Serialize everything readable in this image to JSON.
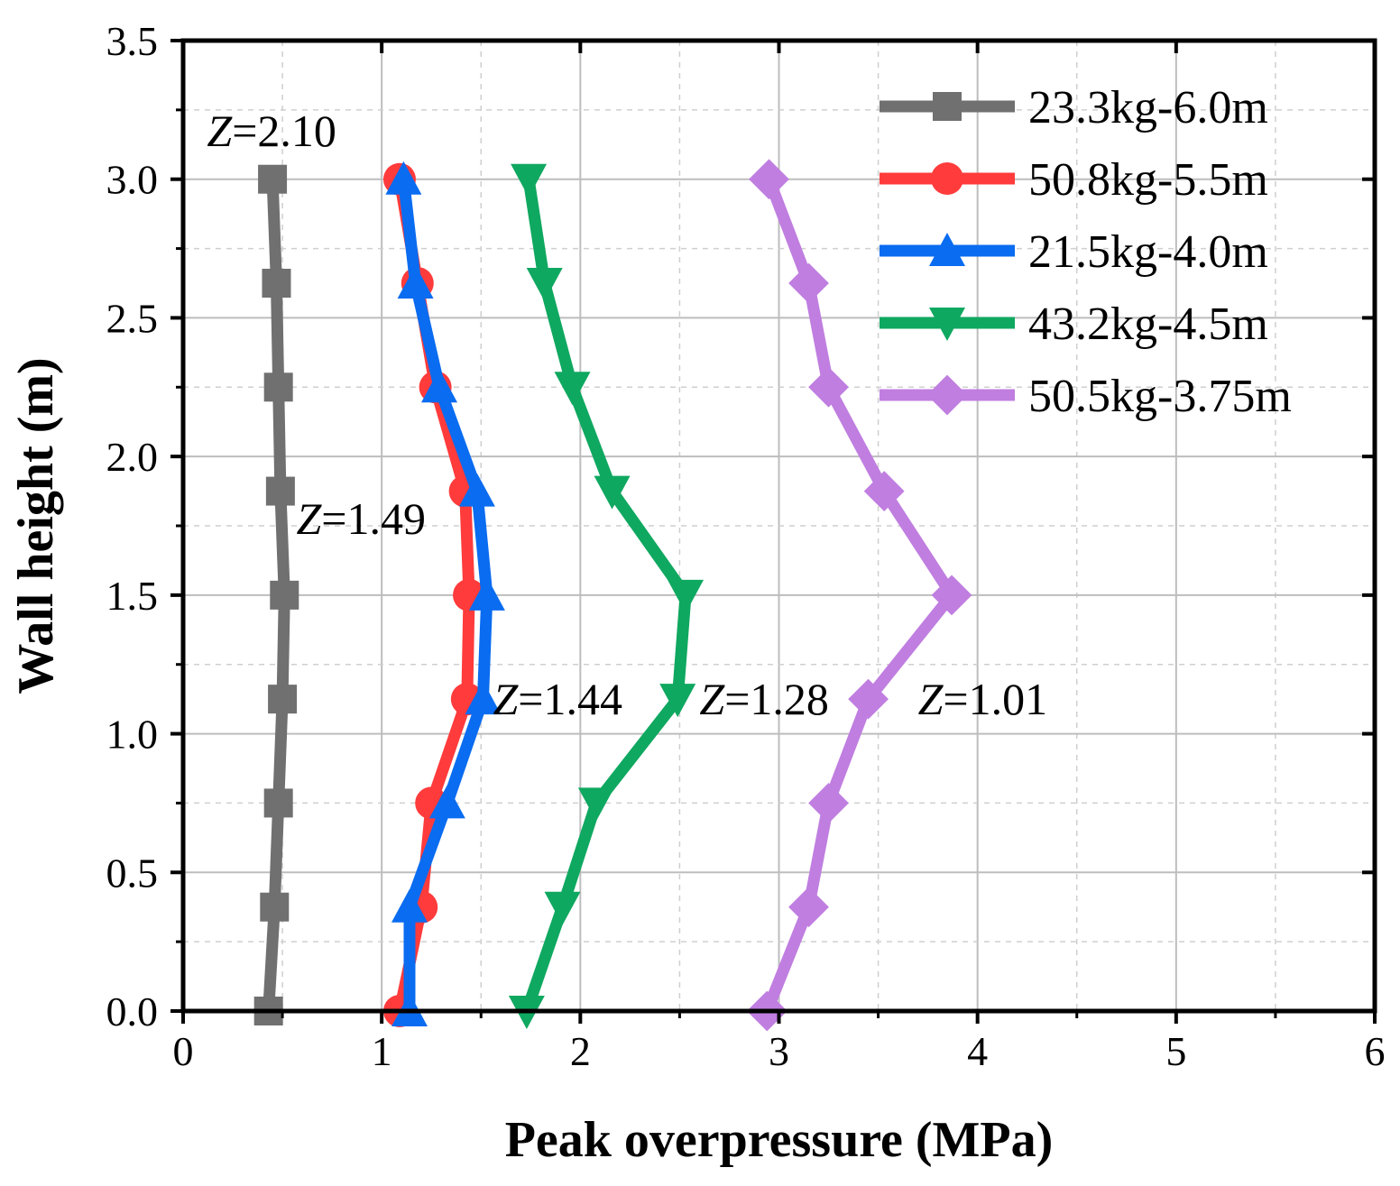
{
  "chart_data": {
    "type": "line",
    "title": "",
    "xlabel": "Peak overpressure (MPa)",
    "ylabel": "Wall height (m)",
    "xlim": [
      0,
      6
    ],
    "ylim": [
      0,
      3.5
    ],
    "xticks": [
      0,
      1,
      2,
      3,
      4,
      5,
      6
    ],
    "xtick_labels": [
      "0",
      "1",
      "2",
      "3",
      "4",
      "5",
      "6"
    ],
    "yticks": [
      0,
      0.5,
      1,
      1.5,
      2,
      2.5,
      3,
      3.5
    ],
    "ytick_labels": [
      "0.0",
      "0.5",
      "1.0",
      "1.5",
      "2.0",
      "2.5",
      "3.0",
      "3.5"
    ],
    "grid": true,
    "legend_position": "top-right",
    "series": [
      {
        "name": "23.3kg-6.0m",
        "color": "#707070",
        "marker": "square",
        "x": [
          0.43,
          0.46,
          0.48,
          0.5,
          0.51,
          0.49,
          0.48,
          0.47,
          0.45
        ],
        "y": [
          0,
          0.375,
          0.75,
          1.125,
          1.5,
          1.875,
          2.25,
          2.625,
          3.0
        ]
      },
      {
        "name": "50.8kg-5.5m",
        "color": "#ff3b3b",
        "marker": "circle",
        "x": [
          1.09,
          1.2,
          1.25,
          1.43,
          1.44,
          1.42,
          1.27,
          1.18,
          1.09
        ],
        "y": [
          0,
          0.375,
          0.75,
          1.125,
          1.5,
          1.875,
          2.25,
          2.625,
          3.0
        ]
      },
      {
        "name": "21.5kg-4.0m",
        "color": "#0a6cf0",
        "marker": "triangle-up",
        "x": [
          1.14,
          1.14,
          1.33,
          1.51,
          1.53,
          1.48,
          1.29,
          1.17,
          1.11
        ],
        "y": [
          0,
          0.375,
          0.75,
          1.125,
          1.5,
          1.875,
          2.25,
          2.625,
          3.0
        ]
      },
      {
        "name": "43.2kg-4.5m",
        "color": "#0fa860",
        "marker": "triangle-down",
        "x": [
          1.73,
          1.91,
          2.08,
          2.49,
          2.53,
          2.16,
          1.96,
          1.82,
          1.74
        ],
        "y": [
          0,
          0.375,
          0.75,
          1.125,
          1.5,
          1.875,
          2.25,
          2.625,
          3.0
        ]
      },
      {
        "name": "50.5kg-3.75m",
        "color": "#c07ee0",
        "marker": "diamond",
        "x": [
          2.94,
          3.15,
          3.25,
          3.45,
          3.87,
          3.53,
          3.25,
          3.15,
          2.95
        ],
        "y": [
          0,
          0.375,
          0.75,
          1.125,
          1.5,
          1.875,
          2.25,
          2.625,
          3.0
        ]
      }
    ],
    "annotations": [
      {
        "prefix": "Z",
        "text": "=2.10",
        "x": 0.12,
        "y": 3.12
      },
      {
        "prefix": "Z",
        "text": "=1.49",
        "x": 0.57,
        "y": 1.72
      },
      {
        "prefix": "Z",
        "text": "=1.44",
        "x": 1.56,
        "y": 1.07
      },
      {
        "prefix": "Z",
        "text": "=1.28",
        "x": 2.6,
        "y": 1.07
      },
      {
        "prefix": "Z",
        "text": "=1.01",
        "x": 3.7,
        "y": 1.07
      }
    ]
  }
}
